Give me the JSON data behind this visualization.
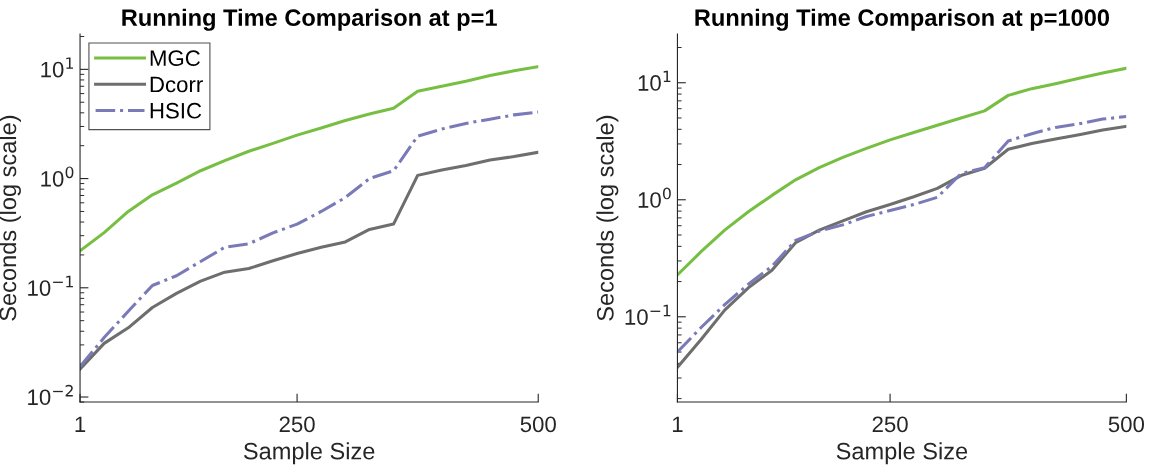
{
  "chart_data": [
    {
      "type": "line",
      "title": "Running Time Comparison at p=1",
      "xlabel": "Sample Size",
      "ylabel": "Seconds (log scale)",
      "log": "y",
      "grid": false,
      "legend": "top left",
      "categories": [
        "1",
        null,
        null,
        null,
        null,
        null,
        null,
        null,
        null,
        "250",
        null,
        null,
        null,
        null,
        null,
        null,
        null,
        null,
        null,
        "500"
      ],
      "ylim": [
        0.009,
        21
      ],
      "yticks": [
        {
          "value": 0.01,
          "label": "10$^{−2}$"
        },
        {
          "value": 0.1,
          "label": "10$^{−1}$"
        },
        {
          "value": 1,
          "label": "10$^{0}$"
        },
        {
          "value": 10,
          "label": "10$^{1}$"
        }
      ],
      "series": [
        {
          "name": "MGC",
          "color": "#77bf43",
          "line_style": "solid",
          "values": [
            0.218,
            0.32,
            0.5,
            0.71,
            0.91,
            1.18,
            1.46,
            1.78,
            2.1,
            2.5,
            2.9,
            3.4,
            3.9,
            4.4,
            6.3,
            7.0,
            7.8,
            8.8,
            9.7,
            10.6
          ]
        },
        {
          "name": "Dcorr",
          "color": "#6e6e6e",
          "line_style": "solid",
          "values": [
            0.018,
            0.031,
            0.043,
            0.066,
            0.089,
            0.115,
            0.139,
            0.15,
            0.177,
            0.206,
            0.235,
            0.263,
            0.342,
            0.383,
            1.07,
            1.2,
            1.32,
            1.48,
            1.59,
            1.74
          ]
        },
        {
          "name": "HSIC",
          "color": "#7a7ab8",
          "line_style": "dashdot",
          "values": [
            0.019,
            0.035,
            0.061,
            0.105,
            0.129,
            0.174,
            0.235,
            0.253,
            0.318,
            0.383,
            0.5,
            0.67,
            1.0,
            1.18,
            2.44,
            2.84,
            3.2,
            3.5,
            3.83,
            4.06
          ]
        }
      ]
    },
    {
      "type": "line",
      "title": "Running Time Comparison at p=1000",
      "xlabel": "Sample Size",
      "ylabel": "Seconds (log scale)",
      "log": "y",
      "grid": false,
      "categories": [
        "1",
        null,
        null,
        null,
        null,
        null,
        null,
        null,
        null,
        "250",
        null,
        null,
        null,
        null,
        null,
        null,
        null,
        null,
        null,
        "500"
      ],
      "ylim": [
        0.0187,
        26
      ],
      "yticks": [
        {
          "value": 0.1,
          "label": "10$^{−1}$"
        },
        {
          "value": 1,
          "label": "10$^{0}$"
        },
        {
          "value": 10,
          "label": "10$^{1}$"
        }
      ],
      "series": [
        {
          "color": "#77bf43",
          "line_style": "solid",
          "values": [
            0.228,
            0.36,
            0.55,
            0.79,
            1.09,
            1.48,
            1.88,
            2.3,
            2.75,
            3.25,
            3.75,
            4.33,
            5.0,
            5.75,
            7.8,
            8.9,
            9.8,
            10.9,
            12.1,
            13.3
          ]
        },
        {
          "color": "#6e6e6e",
          "line_style": "solid",
          "values": [
            0.037,
            0.064,
            0.114,
            0.177,
            0.25,
            0.43,
            0.55,
            0.66,
            0.79,
            0.91,
            1.06,
            1.25,
            1.61,
            1.86,
            2.7,
            3.03,
            3.3,
            3.6,
            3.94,
            4.24
          ]
        },
        {
          "color": "#7a7ab8",
          "line_style": "dashdot",
          "values": [
            0.05,
            0.081,
            0.127,
            0.19,
            0.27,
            0.45,
            0.54,
            0.61,
            0.72,
            0.81,
            0.91,
            1.05,
            1.67,
            1.88,
            3.18,
            3.67,
            4.15,
            4.45,
            4.89,
            5.14
          ]
        }
      ]
    }
  ]
}
